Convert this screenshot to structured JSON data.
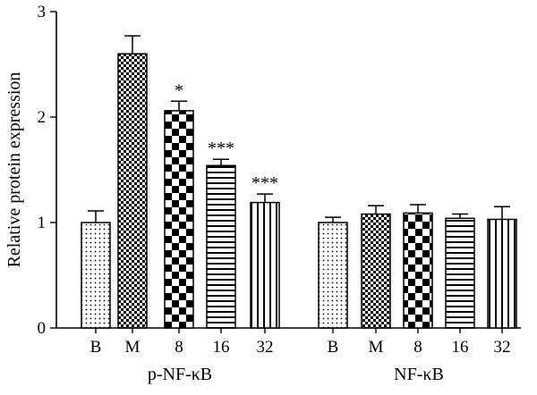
{
  "chart_data": {
    "type": "bar",
    "ylabel": "Relative protein expression",
    "ylim": [
      0,
      3
    ],
    "yticks": [
      "0",
      "1",
      "2",
      "3"
    ],
    "grid": false,
    "groups": [
      {
        "label": "p-NF-κB",
        "bars": [
          {
            "category": "B",
            "value": 1.0,
            "error": 0.11,
            "pattern": "dots",
            "significance": ""
          },
          {
            "category": "M",
            "value": 2.6,
            "error": 0.17,
            "pattern": "fine-checker",
            "significance": ""
          },
          {
            "category": "8",
            "value": 2.06,
            "error": 0.09,
            "pattern": "large-checker",
            "significance": "*"
          },
          {
            "category": "16",
            "value": 1.54,
            "error": 0.06,
            "pattern": "horizontal-lines",
            "significance": "***"
          },
          {
            "category": "32",
            "value": 1.19,
            "error": 0.08,
            "pattern": "vertical-lines",
            "significance": "***"
          }
        ]
      },
      {
        "label": "NF-κB",
        "bars": [
          {
            "category": "B",
            "value": 1.0,
            "error": 0.05,
            "pattern": "dots",
            "significance": ""
          },
          {
            "category": "M",
            "value": 1.08,
            "error": 0.08,
            "pattern": "fine-checker",
            "significance": ""
          },
          {
            "category": "8",
            "value": 1.09,
            "error": 0.08,
            "pattern": "large-checker",
            "significance": ""
          },
          {
            "category": "16",
            "value": 1.04,
            "error": 0.04,
            "pattern": "horizontal-lines",
            "significance": ""
          },
          {
            "category": "32",
            "value": 1.03,
            "error": 0.12,
            "pattern": "vertical-lines",
            "significance": ""
          }
        ]
      }
    ]
  }
}
